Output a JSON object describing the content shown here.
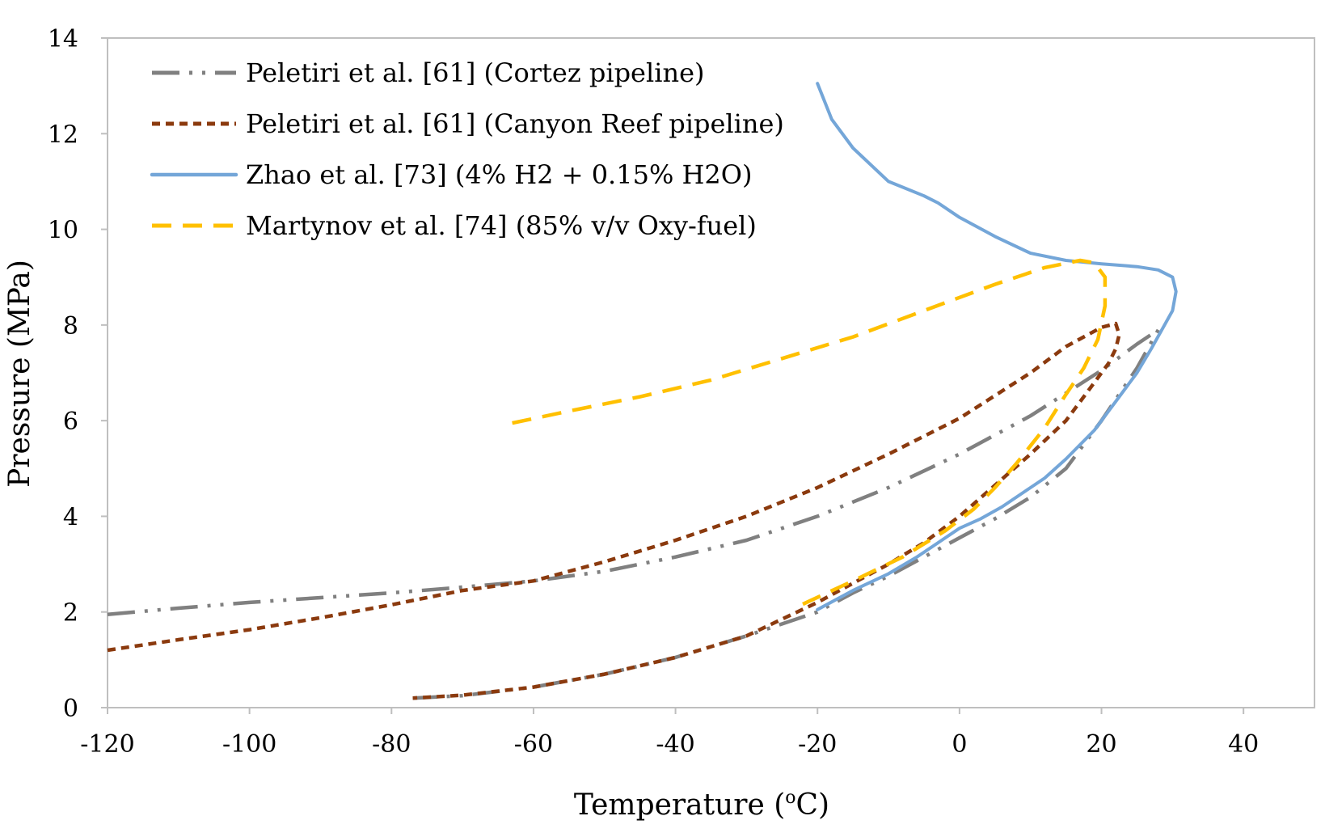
{
  "chart_data": {
    "type": "line",
    "title": "",
    "xlabel_main": "Temperature (",
    "xlabel_sup": "o",
    "xlabel_tail": "C)",
    "ylabel": "Pressure (MPa)",
    "xlim": [
      -120,
      50
    ],
    "ylim": [
      0,
      14
    ],
    "xticks": [
      "-120",
      "-100",
      "-80",
      "-60",
      "-40",
      "-20",
      "0",
      "20",
      "40"
    ],
    "yticks": [
      "0",
      "2",
      "4",
      "6",
      "8",
      "10",
      "12",
      "14"
    ],
    "xtick_values": [
      -120,
      -100,
      -80,
      -60,
      -40,
      -20,
      0,
      20,
      40
    ],
    "ytick_values": [
      0,
      2,
      4,
      6,
      8,
      10,
      12,
      14
    ],
    "grid": false,
    "legend_position": "top-left",
    "series": [
      {
        "name": "Peletiri et al. [61] (Cortez pipeline)",
        "color": "#808080",
        "style": "long-dash-dot-dot",
        "x": [
          -120,
          -110,
          -100,
          -90,
          -80,
          -70,
          -60,
          -50,
          -40,
          -30,
          -20,
          -10,
          0,
          10,
          20,
          25,
          28,
          25,
          20,
          15,
          10,
          5,
          0,
          -5,
          -10,
          -15,
          -20,
          -30,
          -40,
          -50,
          -60,
          -70,
          -77
        ],
        "y": [
          1.95,
          2.08,
          2.2,
          2.3,
          2.4,
          2.52,
          2.65,
          2.85,
          3.15,
          3.5,
          4.0,
          4.6,
          5.3,
          6.1,
          7.05,
          7.6,
          7.9,
          7.1,
          6.0,
          5.0,
          4.4,
          3.95,
          3.55,
          3.15,
          2.75,
          2.4,
          2.0,
          1.5,
          1.05,
          0.7,
          0.43,
          0.25,
          0.2
        ]
      },
      {
        "name": "Peletiri et al. [61] (Canyon Reef pipeline)",
        "color": "#8B3A0E",
        "style": "dash",
        "x": [
          -120,
          -110,
          -100,
          -90,
          -80,
          -70,
          -60,
          -50,
          -40,
          -30,
          -20,
          -10,
          0,
          10,
          15,
          20,
          22,
          22.5,
          22,
          21,
          18,
          15,
          10,
          5,
          0,
          -5,
          -10,
          -15,
          -20,
          -25,
          -30,
          -40,
          -50,
          -60,
          -70,
          -77
        ],
        "y": [
          1.2,
          1.42,
          1.63,
          1.88,
          2.15,
          2.45,
          2.65,
          3.05,
          3.5,
          4.0,
          4.6,
          5.3,
          6.05,
          7.0,
          7.55,
          7.95,
          8.03,
          7.8,
          7.5,
          7.2,
          6.6,
          6.0,
          5.3,
          4.65,
          4.0,
          3.45,
          3.0,
          2.6,
          2.2,
          1.85,
          1.5,
          1.05,
          0.7,
          0.43,
          0.26,
          0.2
        ]
      },
      {
        "name": "Zhao et al. [73] (4% H2 + 0.15% H2O)",
        "color": "#74A6D8",
        "style": "solid",
        "x": [
          -20,
          -18,
          -15,
          -10,
          -5,
          -3,
          0,
          5,
          10,
          15,
          20,
          25,
          28,
          30,
          30.5,
          30,
          28.5,
          27,
          25,
          22,
          19,
          15,
          12,
          9,
          6,
          3,
          0,
          -3,
          -6,
          -10,
          -15,
          -20
        ],
        "y": [
          13.05,
          12.3,
          11.7,
          11.0,
          10.7,
          10.55,
          10.25,
          9.85,
          9.5,
          9.35,
          9.28,
          9.22,
          9.15,
          9.0,
          8.7,
          8.3,
          7.9,
          7.5,
          7.0,
          6.4,
          5.8,
          5.2,
          4.8,
          4.5,
          4.2,
          3.95,
          3.75,
          3.45,
          3.15,
          2.8,
          2.45,
          2.05
        ]
      },
      {
        "name": "Martynov et al. [74] (85% v/v Oxy-fuel)",
        "color": "#FFC000",
        "style": "long-dash",
        "x": [
          -63,
          -55,
          -45,
          -35,
          -25,
          -15,
          -5,
          5,
          12,
          17,
          19,
          20.5,
          20.5,
          19.5,
          17.5,
          15,
          12,
          8,
          5,
          2,
          -2,
          -8,
          -15,
          -23
        ],
        "y": [
          5.95,
          6.2,
          6.5,
          6.85,
          7.3,
          7.75,
          8.3,
          8.85,
          9.2,
          9.35,
          9.3,
          9.0,
          8.4,
          7.7,
          7.1,
          6.55,
          5.85,
          5.1,
          4.6,
          4.15,
          3.7,
          3.15,
          2.65,
          2.1
        ]
      }
    ]
  }
}
